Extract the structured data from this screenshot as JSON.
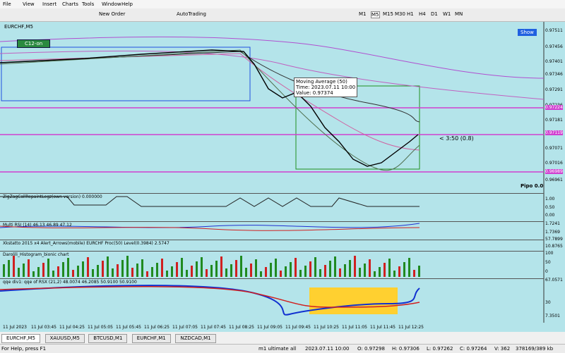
{
  "menu": [
    "File",
    "View",
    "Insert",
    "Charts",
    "Tools",
    "Window",
    "Help"
  ],
  "toolbar": {
    "new_order": "New Order",
    "auto_trading": "AutoTrading",
    "timeframes": [
      "M1",
      "M5",
      "M15",
      "M30",
      "H1",
      "H4",
      "D1",
      "W1",
      "MN"
    ]
  },
  "chart": {
    "title": "EURCHF,M5",
    "show_button": "Show",
    "badge": "C12-on",
    "price_labels": [
      "0.97511",
      "0.97456",
      "0.97401",
      "0.97346",
      "0.97291",
      "0.97236",
      "0.97181",
      "0.97126",
      "0.97071",
      "0.97016",
      "0.96961"
    ],
    "level_labels": [
      "0.97224",
      "0.97119",
      "0.96989"
    ],
    "tooltip": [
      "Moving Average (50)",
      "Time: 2023.07.11 10:00",
      "Value: 0.97374"
    ],
    "measure": "< 3:50 (0.8)",
    "pipo": "Pipo 0.0"
  },
  "indicators": [
    {
      "title": "ZigZagCallRepaintLegz(own version) 0.000000",
      "axis": [
        "1.00",
        "0.50",
        "0.00"
      ]
    },
    {
      "title": "Multi RSI (14) 46.13 46.89 47.12",
      "axis": [
        "1.7241",
        "1.7369"
      ]
    },
    {
      "title": "Xkstatto 2015 x4 Alert_Arrows(mobile) EURCHF Proc(50) Level(0.3984) 2.5747",
      "axis": [
        "57.7899",
        "10.8765"
      ]
    },
    {
      "title": "Darolili_Histogram_bionic chart",
      "axis": [
        "100",
        "50",
        "0"
      ]
    },
    {
      "title": "qqe div1: qqe of RSX (21,2) 48.0074 46.2085 50.9100 50.9100",
      "axis": [
        "67.0571",
        "30",
        "7.3501"
      ]
    }
  ],
  "time_labels": [
    "11 Jul 2023",
    "11 Jul 03:45",
    "11 Jul 04:25",
    "11 Jul 05:05",
    "11 Jul 05:45",
    "11 Jul 06:25",
    "11 Jul 07:05",
    "11 Jul 07:45",
    "11 Jul 08:25",
    "11 Jul 09:05",
    "11 Jul 09:45",
    "11 Jul 10:25",
    "11 Jul 11:05",
    "11 Jul 11:45",
    "11 Jul 12:25"
  ],
  "tabs": [
    "EURCHF,M5",
    "XAUUSD,M5",
    "BTCUSD,M1",
    "EURCHF,M1",
    "NZDCAD,M1"
  ],
  "status": [
    "For Help, press F1",
    "m1 ultimate all",
    "2023.07.11 10:00",
    "O: 0.97298",
    "H: 0.97306",
    "L: 0.97262",
    "C: 0.97264",
    "V: 362",
    "378169/389 kb"
  ]
}
